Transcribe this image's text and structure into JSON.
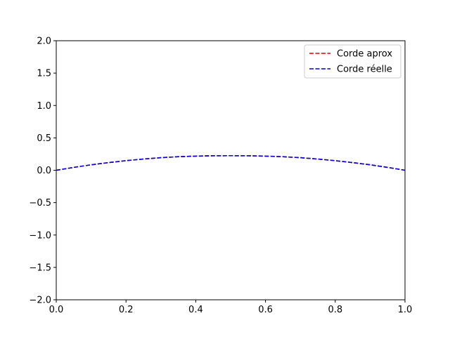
{
  "chart_data": {
    "type": "line",
    "title": "",
    "xlabel": "",
    "ylabel": "",
    "xlim": [
      0.0,
      1.0
    ],
    "ylim": [
      -2.0,
      2.0
    ],
    "xticks": [
      "0.0",
      "0.2",
      "0.4",
      "0.6",
      "0.8",
      "1.0"
    ],
    "yticks": [
      "2.0",
      "1.5",
      "1.0",
      "0.5",
      "0.0",
      "−0.5",
      "−1.0",
      "−1.5",
      "−2.0"
    ],
    "grid": false,
    "legend_position": "top-right",
    "x": [
      0.0,
      0.05,
      0.1,
      0.15,
      0.2,
      0.25,
      0.3,
      0.35,
      0.4,
      0.45,
      0.5,
      0.55,
      0.6,
      0.65,
      0.7,
      0.75,
      0.8,
      0.85,
      0.9,
      0.95,
      1.0
    ],
    "series": [
      {
        "name": "Corde aprox",
        "color": "#e00000",
        "style": "dashed",
        "values": [
          0.0,
          0.044,
          0.084,
          0.118,
          0.148,
          0.173,
          0.194,
          0.209,
          0.218,
          0.224,
          0.225,
          0.224,
          0.218,
          0.209,
          0.194,
          0.173,
          0.148,
          0.118,
          0.084,
          0.044,
          0.0
        ]
      },
      {
        "name": "Corde réelle",
        "color": "#0000dd",
        "style": "dashed",
        "values": [
          0.0,
          0.044,
          0.084,
          0.118,
          0.148,
          0.173,
          0.194,
          0.209,
          0.218,
          0.224,
          0.225,
          0.224,
          0.218,
          0.209,
          0.194,
          0.173,
          0.148,
          0.118,
          0.084,
          0.044,
          0.0
        ]
      }
    ]
  }
}
